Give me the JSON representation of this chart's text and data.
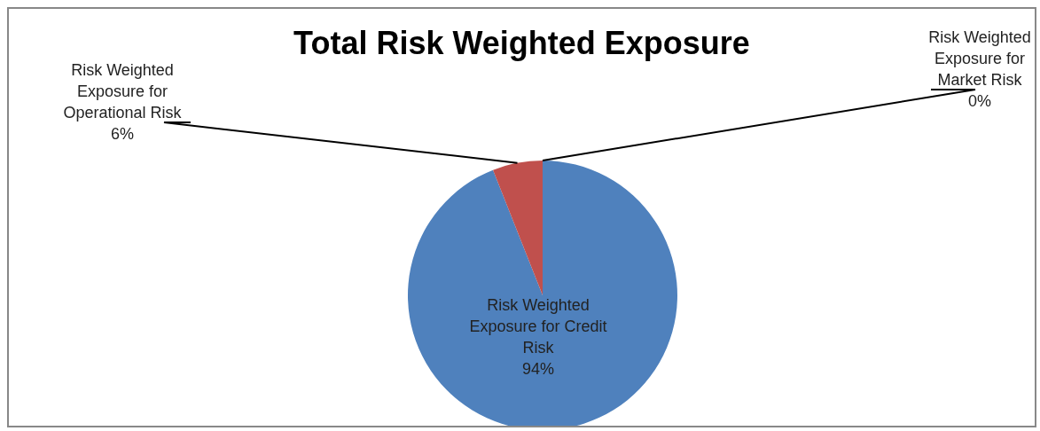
{
  "chart_data": {
    "type": "pie",
    "title": "Total Risk Weighted Exposure",
    "categories": [
      "Risk Weighted Exposure for Credit Risk",
      "Risk Weighted Exposure for Operational Risk",
      "Risk Weighted Exposure for Market Risk"
    ],
    "values": [
      94,
      6,
      0
    ],
    "value_labels": [
      "94%",
      "6%",
      "0%"
    ],
    "colors": [
      "#4f81bd",
      "#c0504d",
      "#9bbb59"
    ]
  }
}
